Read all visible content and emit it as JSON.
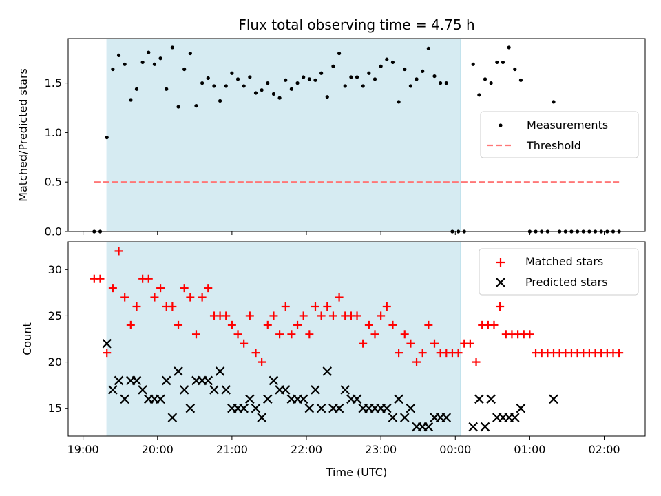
{
  "chart_data": [
    {
      "type": "scatter",
      "title": "Flux total observing time = 4.75 h",
      "xlabel": "",
      "ylabel": "Matched/Predicted stars",
      "xlim": [
        18.8,
        26.55
      ],
      "ylim": [
        0,
        1.95
      ],
      "yticks": [
        0.0,
        0.5,
        1.0,
        1.5
      ],
      "ytick_labels": [
        "0.0",
        "0.5",
        "1.0",
        "1.5"
      ],
      "shaded_span": [
        19.32,
        24.07
      ],
      "legend": {
        "position": "center-right",
        "entries": [
          "Measurements",
          "Threshold"
        ]
      },
      "threshold": {
        "name": "Threshold",
        "y": 0.5,
        "x": [
          19.15,
          26.2
        ],
        "color": "#ff7777",
        "style": "dashed"
      },
      "series": [
        {
          "name": "Measurements",
          "marker": "dot",
          "color": "#000000",
          "points": [
            [
              19.15,
              0
            ],
            [
              19.23,
              0
            ],
            [
              19.32,
              0.95
            ],
            [
              19.4,
              1.64
            ],
            [
              19.48,
              1.78
            ],
            [
              19.56,
              1.69
            ],
            [
              19.64,
              1.33
            ],
            [
              19.72,
              1.44
            ],
            [
              19.8,
              1.71
            ],
            [
              19.88,
              1.81
            ],
            [
              19.96,
              1.69
            ],
            [
              20.04,
              1.75
            ],
            [
              20.12,
              1.44
            ],
            [
              20.2,
              1.86
            ],
            [
              20.28,
              1.26
            ],
            [
              20.36,
              1.64
            ],
            [
              20.44,
              1.8
            ],
            [
              20.52,
              1.27
            ],
            [
              20.6,
              1.5
            ],
            [
              20.68,
              1.55
            ],
            [
              20.76,
              1.47
            ],
            [
              20.84,
              1.32
            ],
            [
              20.92,
              1.47
            ],
            [
              21.0,
              1.6
            ],
            [
              21.08,
              1.54
            ],
            [
              21.16,
              1.47
            ],
            [
              21.24,
              1.56
            ],
            [
              21.32,
              1.4
            ],
            [
              21.4,
              1.43
            ],
            [
              21.48,
              1.5
            ],
            [
              21.56,
              1.39
            ],
            [
              21.64,
              1.35
            ],
            [
              21.72,
              1.53
            ],
            [
              21.8,
              1.44
            ],
            [
              21.88,
              1.5
            ],
            [
              21.96,
              1.56
            ],
            [
              22.04,
              1.54
            ],
            [
              22.12,
              1.53
            ],
            [
              22.2,
              1.6
            ],
            [
              22.28,
              1.36
            ],
            [
              22.36,
              1.67
            ],
            [
              22.44,
              1.8
            ],
            [
              22.52,
              1.47
            ],
            [
              22.6,
              1.56
            ],
            [
              22.68,
              1.56
            ],
            [
              22.76,
              1.47
            ],
            [
              22.84,
              1.6
            ],
            [
              22.92,
              1.54
            ],
            [
              23.0,
              1.67
            ],
            [
              23.08,
              1.74
            ],
            [
              23.16,
              1.71
            ],
            [
              23.24,
              1.31
            ],
            [
              23.32,
              1.64
            ],
            [
              23.4,
              1.47
            ],
            [
              23.48,
              1.54
            ],
            [
              23.56,
              1.62
            ],
            [
              23.64,
              1.85
            ],
            [
              23.72,
              1.57
            ],
            [
              23.8,
              1.5
            ],
            [
              23.88,
              1.5
            ],
            [
              23.96,
              0
            ],
            [
              24.04,
              0
            ],
            [
              24.12,
              0
            ],
            [
              24.24,
              1.69
            ],
            [
              24.32,
              1.38
            ],
            [
              24.4,
              1.54
            ],
            [
              24.48,
              1.5
            ],
            [
              24.56,
              1.71
            ],
            [
              24.64,
              1.71
            ],
            [
              24.72,
              1.86
            ],
            [
              24.8,
              1.64
            ],
            [
              24.88,
              1.53
            ],
            [
              25.0,
              0
            ],
            [
              25.08,
              0
            ],
            [
              25.16,
              0
            ],
            [
              25.24,
              0
            ],
            [
              25.32,
              1.31
            ],
            [
              25.4,
              0
            ],
            [
              25.48,
              0
            ],
            [
              25.56,
              0
            ],
            [
              25.64,
              0
            ],
            [
              25.72,
              0
            ],
            [
              25.8,
              0
            ],
            [
              25.88,
              0
            ],
            [
              25.96,
              0
            ],
            [
              26.04,
              0
            ],
            [
              26.12,
              0
            ],
            [
              26.2,
              0
            ]
          ]
        }
      ]
    },
    {
      "type": "scatter",
      "title": "",
      "xlabel": "Time (UTC)",
      "ylabel": "Count",
      "xlim": [
        18.8,
        26.55
      ],
      "ylim": [
        12,
        33
      ],
      "yticks": [
        15,
        20,
        25,
        30
      ],
      "ytick_labels": [
        "15",
        "20",
        "25",
        "30"
      ],
      "xticks": [
        19,
        20,
        21,
        22,
        23,
        24,
        25,
        26
      ],
      "xtick_labels": [
        "19:00",
        "20:00",
        "21:00",
        "22:00",
        "23:00",
        "00:00",
        "01:00",
        "02:00"
      ],
      "shaded_span": [
        19.32,
        24.07
      ],
      "legend": {
        "position": "top-right",
        "entries": [
          "Matched stars",
          "Predicted stars"
        ]
      },
      "series": [
        {
          "name": "Matched stars",
          "marker": "plus",
          "color": "#ff0000",
          "points": [
            [
              19.15,
              29
            ],
            [
              19.23,
              29
            ],
            [
              19.32,
              21
            ],
            [
              19.4,
              28
            ],
            [
              19.48,
              32
            ],
            [
              19.56,
              27
            ],
            [
              19.64,
              24
            ],
            [
              19.72,
              26
            ],
            [
              19.8,
              29
            ],
            [
              19.88,
              29
            ],
            [
              19.96,
              27
            ],
            [
              20.04,
              28
            ],
            [
              20.12,
              26
            ],
            [
              20.2,
              26
            ],
            [
              20.28,
              24
            ],
            [
              20.36,
              28
            ],
            [
              20.44,
              27
            ],
            [
              20.52,
              23
            ],
            [
              20.6,
              27
            ],
            [
              20.68,
              28
            ],
            [
              20.76,
              25
            ],
            [
              20.84,
              25
            ],
            [
              20.92,
              25
            ],
            [
              21.0,
              24
            ],
            [
              21.08,
              23
            ],
            [
              21.16,
              22
            ],
            [
              21.24,
              25
            ],
            [
              21.32,
              21
            ],
            [
              21.4,
              20
            ],
            [
              21.48,
              24
            ],
            [
              21.56,
              25
            ],
            [
              21.64,
              23
            ],
            [
              21.72,
              26
            ],
            [
              21.8,
              23
            ],
            [
              21.88,
              24
            ],
            [
              21.96,
              25
            ],
            [
              22.04,
              23
            ],
            [
              22.12,
              26
            ],
            [
              22.2,
              25
            ],
            [
              22.28,
              26
            ],
            [
              22.36,
              25
            ],
            [
              22.44,
              27
            ],
            [
              22.52,
              25
            ],
            [
              22.6,
              25
            ],
            [
              22.68,
              25
            ],
            [
              22.76,
              22
            ],
            [
              22.84,
              24
            ],
            [
              22.92,
              23
            ],
            [
              23.0,
              25
            ],
            [
              23.08,
              26
            ],
            [
              23.16,
              24
            ],
            [
              23.24,
              21
            ],
            [
              23.32,
              23
            ],
            [
              23.4,
              22
            ],
            [
              23.48,
              20
            ],
            [
              23.56,
              21
            ],
            [
              23.64,
              24
            ],
            [
              23.72,
              22
            ],
            [
              23.8,
              21
            ],
            [
              23.88,
              21
            ],
            [
              23.96,
              21
            ],
            [
              24.04,
              21
            ],
            [
              24.12,
              22
            ],
            [
              24.2,
              22
            ],
            [
              24.28,
              20
            ],
            [
              24.36,
              24
            ],
            [
              24.44,
              24
            ],
            [
              24.52,
              24
            ],
            [
              24.6,
              26
            ],
            [
              24.68,
              23
            ],
            [
              24.76,
              23
            ],
            [
              24.84,
              23
            ],
            [
              24.92,
              23
            ],
            [
              25.0,
              23
            ],
            [
              25.08,
              21
            ],
            [
              25.16,
              21
            ],
            [
              25.24,
              21
            ],
            [
              25.32,
              21
            ],
            [
              25.4,
              21
            ],
            [
              25.48,
              21
            ],
            [
              25.56,
              21
            ],
            [
              25.64,
              21
            ],
            [
              25.72,
              21
            ],
            [
              25.8,
              21
            ],
            [
              25.88,
              21
            ],
            [
              25.96,
              21
            ],
            [
              26.04,
              21
            ],
            [
              26.12,
              21
            ],
            [
              26.2,
              21
            ]
          ]
        },
        {
          "name": "Predicted stars",
          "marker": "x",
          "color": "#000000",
          "points": [
            [
              19.32,
              22
            ],
            [
              19.4,
              17
            ],
            [
              19.48,
              18
            ],
            [
              19.56,
              16
            ],
            [
              19.64,
              18
            ],
            [
              19.72,
              18
            ],
            [
              19.8,
              17
            ],
            [
              19.88,
              16
            ],
            [
              19.96,
              16
            ],
            [
              20.04,
              16
            ],
            [
              20.12,
              18
            ],
            [
              20.2,
              14
            ],
            [
              20.28,
              19
            ],
            [
              20.36,
              17
            ],
            [
              20.44,
              15
            ],
            [
              20.52,
              18
            ],
            [
              20.6,
              18
            ],
            [
              20.68,
              18
            ],
            [
              20.76,
              17
            ],
            [
              20.84,
              19
            ],
            [
              20.92,
              17
            ],
            [
              21.0,
              15
            ],
            [
              21.08,
              15
            ],
            [
              21.16,
              15
            ],
            [
              21.24,
              16
            ],
            [
              21.32,
              15
            ],
            [
              21.4,
              14
            ],
            [
              21.48,
              16
            ],
            [
              21.56,
              18
            ],
            [
              21.64,
              17
            ],
            [
              21.72,
              17
            ],
            [
              21.8,
              16
            ],
            [
              21.88,
              16
            ],
            [
              21.96,
              16
            ],
            [
              22.04,
              15
            ],
            [
              22.12,
              17
            ],
            [
              22.2,
              15
            ],
            [
              22.28,
              19
            ],
            [
              22.36,
              15
            ],
            [
              22.44,
              15
            ],
            [
              22.52,
              17
            ],
            [
              22.6,
              16
            ],
            [
              22.68,
              16
            ],
            [
              22.76,
              15
            ],
            [
              22.84,
              15
            ],
            [
              22.92,
              15
            ],
            [
              23.0,
              15
            ],
            [
              23.08,
              15
            ],
            [
              23.16,
              14
            ],
            [
              23.24,
              16
            ],
            [
              23.32,
              14
            ],
            [
              23.4,
              15
            ],
            [
              23.48,
              13
            ],
            [
              23.56,
              13
            ],
            [
              23.64,
              13
            ],
            [
              23.72,
              14
            ],
            [
              23.8,
              14
            ],
            [
              23.88,
              14
            ],
            [
              24.24,
              13
            ],
            [
              24.32,
              16
            ],
            [
              24.4,
              13
            ],
            [
              24.48,
              16
            ],
            [
              24.56,
              14
            ],
            [
              24.64,
              14
            ],
            [
              24.72,
              14
            ],
            [
              24.8,
              14
            ],
            [
              24.88,
              15
            ],
            [
              25.32,
              16
            ]
          ]
        }
      ]
    }
  ]
}
